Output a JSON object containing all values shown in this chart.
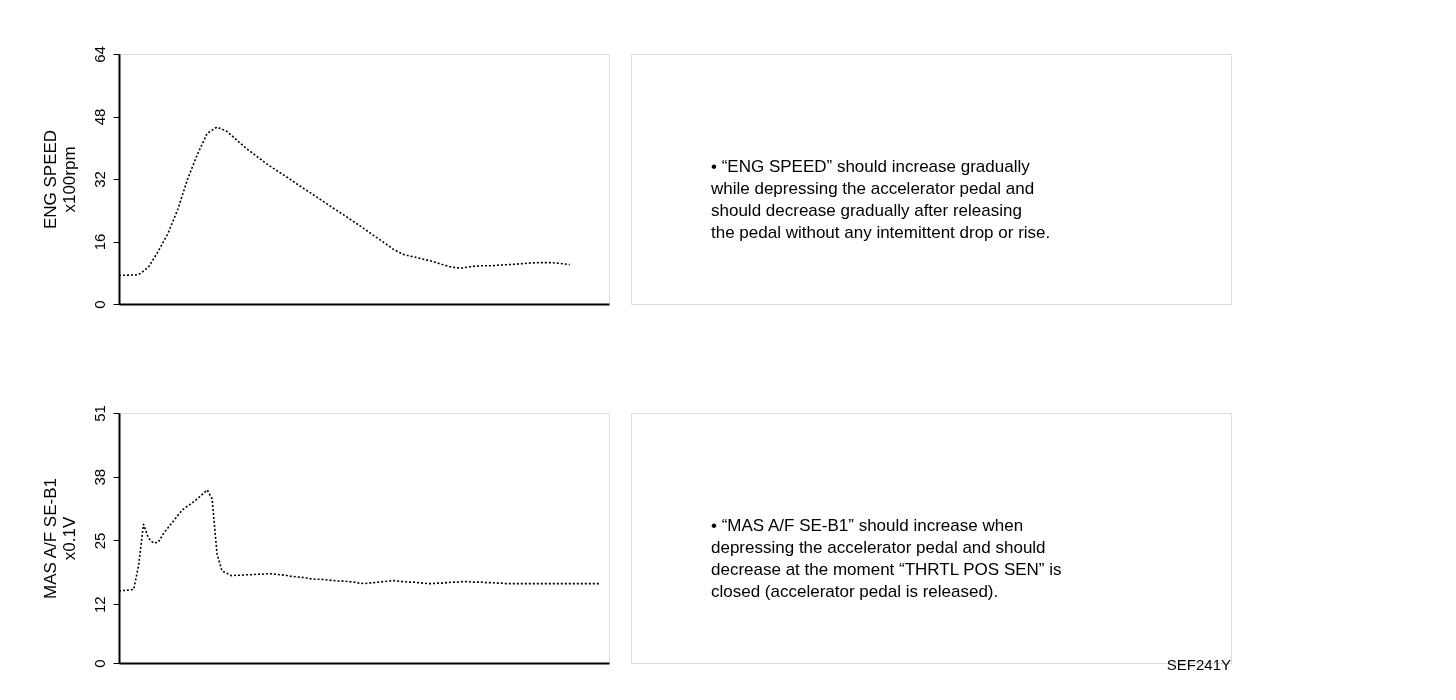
{
  "chart_data": [
    {
      "type": "line",
      "ylabel": "ENG SPEED\nx100rpm",
      "color": "#000000",
      "line_style": "dotted",
      "marker": "none",
      "grid": false,
      "tick_labels": "y",
      "categories": [
        null,
        null,
        null,
        null,
        null,
        null,
        null,
        null,
        null,
        null,
        null,
        null,
        null,
        null,
        null,
        null,
        null,
        null,
        null,
        null,
        null,
        null,
        null,
        null,
        null,
        null,
        null,
        null,
        null,
        null,
        null,
        null,
        null,
        null,
        null,
        null,
        null,
        null,
        null,
        null,
        null,
        null,
        null,
        null,
        null,
        null,
        null,
        null,
        null,
        null,
        null
      ],
      "values": [
        7.3,
        7.4,
        7.5,
        9.4,
        13.5,
        18.1,
        24.2,
        32,
        38.3,
        43.7,
        45.3,
        44.2,
        42,
        39.8,
        37.9,
        36,
        34.3,
        32.7,
        31,
        29.3,
        27.7,
        26,
        24.3,
        22.7,
        21,
        19.3,
        17.5,
        15.8,
        14,
        12.7,
        12.1,
        11.5,
        10.9,
        10.1,
        9.4,
        9.2,
        9.6,
        9.8,
        9.8,
        10,
        10.1,
        10.3,
        10.5,
        10.6,
        10.6,
        10.4,
        10.1,
        null,
        null,
        null,
        null
      ],
      "ylim": [
        0,
        64
      ],
      "yticks": [
        0,
        16,
        32,
        48,
        64
      ],
      "annotations": [
        "• “ENG SPEED” should increase gradually\n  while depressing the accelerator pedal and\n  should decrease gradually after releasing\n  the pedal without any intemittent drop or rise."
      ]
    },
    {
      "type": "line",
      "ylabel": "MAS A/F SE-B1\nx0.1V",
      "color": "#000000",
      "line_style": "dotted",
      "marker": "none",
      "grid": false,
      "tick_labels": "y",
      "categories": [
        null,
        null,
        null,
        null,
        null,
        null,
        null,
        null,
        null,
        null,
        null,
        null,
        null,
        null,
        null,
        null,
        null,
        null,
        null,
        null,
        null,
        null,
        null,
        null,
        null,
        null,
        null,
        null,
        null,
        null,
        null,
        null,
        null,
        null,
        null,
        null,
        null,
        null,
        null,
        null,
        null,
        null,
        null,
        null,
        null,
        null,
        null,
        null,
        null,
        null,
        null,
        null,
        null,
        null,
        null,
        null,
        null,
        null,
        null,
        null,
        null,
        null,
        null,
        null,
        null,
        null,
        null,
        null,
        null,
        null,
        null,
        null,
        null,
        null,
        null,
        null,
        null,
        null,
        null,
        null,
        null,
        null,
        null,
        null,
        null,
        null,
        null,
        null,
        null,
        null,
        null,
        null,
        null,
        null,
        null,
        null,
        null,
        null,
        null,
        null,
        null
      ],
      "values": [
        14.7,
        14.8,
        14.9,
        15,
        19.9,
        28.3,
        25.5,
        24.5,
        24.6,
        26.3,
        27.6,
        28.8,
        30.1,
        31.3,
        32,
        32.7,
        33.5,
        34.4,
        35.3,
        33.5,
        22.3,
        18.8,
        18.3,
        17.8,
        17.9,
        17.9,
        18,
        18,
        18.1,
        18.1,
        18.2,
        18.2,
        18.1,
        18,
        17.9,
        17.7,
        17.6,
        17.5,
        17.4,
        17.2,
        17.1,
        17.1,
        17,
        16.9,
        16.8,
        16.7,
        16.7,
        16.6,
        16.5,
        16.3,
        16.2,
        16.3,
        16.4,
        16.5,
        16.6,
        16.7,
        16.8,
        16.7,
        16.6,
        16.5,
        16.5,
        16.4,
        16.3,
        16.2,
        16.2,
        16.3,
        16.3,
        16.4,
        16.5,
        16.5,
        16.6,
        16.6,
        16.5,
        16.5,
        16.5,
        16.4,
        16.4,
        16.3,
        16.3,
        16.2,
        16.2,
        16.2,
        16.2,
        16.2,
        16.2,
        16.2,
        16.2,
        16.2,
        16.2,
        16.2,
        16.2,
        16.2,
        16.2,
        16.2,
        16.2,
        16.2,
        16.2,
        16.2,
        16.2,
        null,
        null
      ],
      "ylim": [
        0,
        51
      ],
      "yticks": [
        0,
        12,
        25,
        38,
        51
      ],
      "annotations": [
        "• “MAS A/F SE-B1” should increase when\n  depressing the accelerator pedal and  should\n  decrease at the moment “THRTL POS SEN” is\n  closed (accelerator pedal is released).",
        "SEF241Y"
      ]
    }
  ]
}
